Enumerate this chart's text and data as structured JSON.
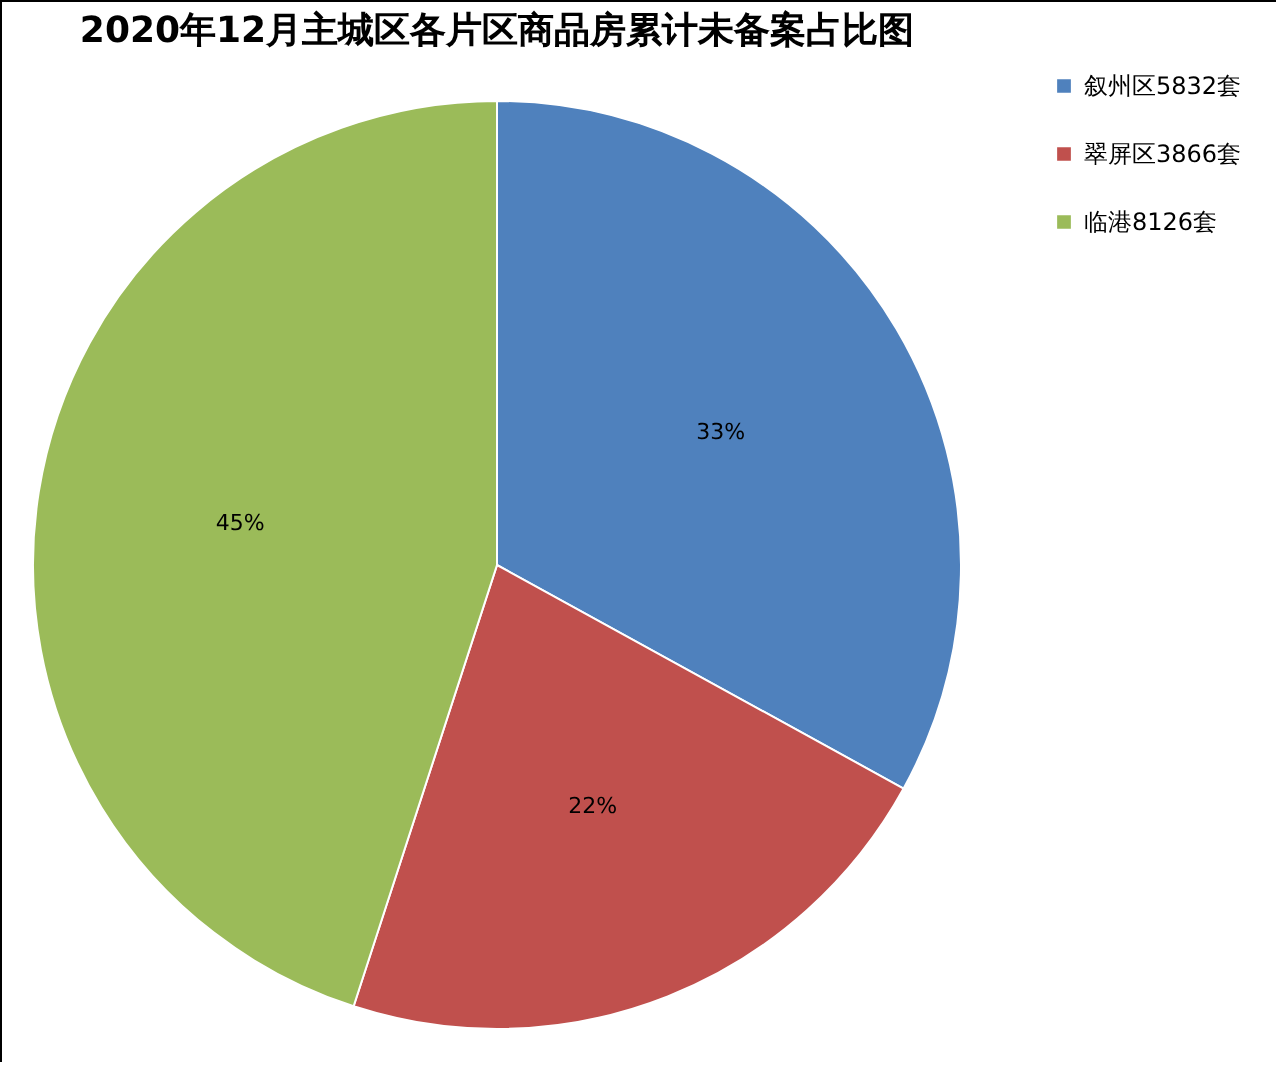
{
  "chart_data": {
    "type": "pie",
    "title": "2020年12月主城区各片区商品房累计未备案占比图",
    "categories": [
      "叙州区5832套",
      "翠屏区3866套",
      "临港8126套"
    ],
    "values": [
      33,
      22,
      45
    ],
    "value_labels": [
      "33%",
      "22%",
      "45%"
    ],
    "colors": [
      "#4f81bd",
      "#c0504d",
      "#9bbb59"
    ],
    "legend": "right"
  }
}
